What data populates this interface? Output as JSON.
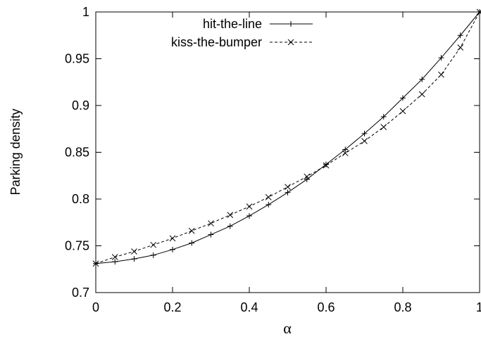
{
  "chart_data": {
    "type": "line",
    "xlabel": "α",
    "ylabel": "Parking density",
    "xlim": [
      0,
      1
    ],
    "ylim": [
      0.7,
      1
    ],
    "xticks": [
      "0",
      "0.2",
      "0.4",
      "0.6",
      "0.8",
      "1"
    ],
    "xtick_values": [
      0,
      0.2,
      0.4,
      0.6,
      0.8,
      1
    ],
    "yticks": [
      "0.7",
      "0.75",
      "0.8",
      "0.85",
      "0.9",
      "0.95",
      "1"
    ],
    "ytick_values": [
      0.7,
      0.75,
      0.8,
      0.85,
      0.9,
      0.95,
      1
    ],
    "grid": false,
    "legend_position": "top-right",
    "x": [
      0,
      0.05,
      0.1,
      0.15,
      0.2,
      0.25,
      0.3,
      0.35,
      0.4,
      0.45,
      0.5,
      0.55,
      0.6,
      0.65,
      0.7,
      0.75,
      0.8,
      0.85,
      0.9,
      0.95,
      1
    ],
    "series": [
      {
        "name": "hit-the-line",
        "line_style": "solid",
        "marker": "plus",
        "values": [
          0.731,
          0.733,
          0.736,
          0.74,
          0.746,
          0.753,
          0.762,
          0.771,
          0.782,
          0.794,
          0.807,
          0.821,
          0.837,
          0.853,
          0.87,
          0.888,
          0.908,
          0.928,
          0.951,
          0.975,
          1.0
        ]
      },
      {
        "name": "kiss-the-bumper",
        "line_style": "dashed",
        "marker": "x",
        "values": [
          0.731,
          0.738,
          0.744,
          0.751,
          0.758,
          0.766,
          0.774,
          0.783,
          0.792,
          0.802,
          0.813,
          0.824,
          0.836,
          0.849,
          0.862,
          0.877,
          0.894,
          0.912,
          0.933,
          0.962,
          1.0
        ]
      }
    ]
  }
}
